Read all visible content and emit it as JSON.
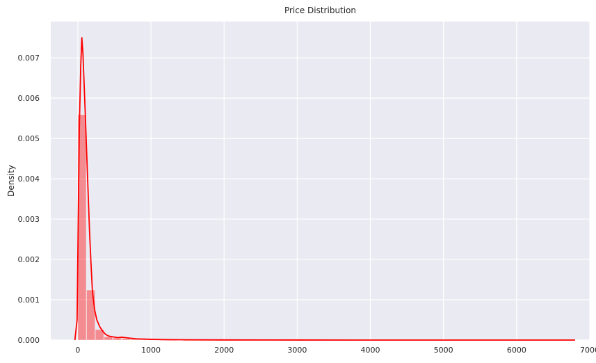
{
  "chart_data": {
    "type": "bar",
    "title": "Price Distribution",
    "xlabel": "",
    "ylabel": "Density",
    "xlim": [
      -370,
      7000
    ],
    "ylim": [
      0,
      0.0079
    ],
    "xticks": [
      0,
      1000,
      2000,
      3000,
      4000,
      5000,
      6000,
      7000
    ],
    "xtick_labels": [
      "0",
      "1000",
      "2000",
      "3000",
      "4000",
      "5000",
      "6000",
      "7000"
    ],
    "yticks": [
      0,
      0.001,
      0.002,
      0.003,
      0.004,
      0.005,
      0.006,
      0.007
    ],
    "ytick_labels": [
      "0.000",
      "0.001",
      "0.002",
      "0.003",
      "0.004",
      "0.005",
      "0.006",
      "0.007"
    ],
    "grid": true,
    "legend": "none",
    "histogram": {
      "bin_width": 120,
      "bins_start": [
        0,
        120,
        240,
        360,
        480,
        600,
        720,
        840,
        960,
        1080,
        1200,
        1320
      ],
      "densities": [
        0.00559,
        0.00124,
        0.00026,
        8e-05,
        5e-05,
        3.5e-05,
        2.5e-05,
        1.8e-05,
        1.3e-05,
        1e-05,
        8e-06,
        6e-06
      ],
      "tail_range": [
        1440,
        6770
      ],
      "tail_density": 3e-06,
      "color": "#ff0000"
    },
    "kde": {
      "x": [
        -40,
        -10,
        20,
        40,
        55,
        70,
        85,
        100,
        120,
        140,
        160,
        180,
        200,
        230,
        260,
        300,
        340,
        380,
        420,
        480,
        540,
        600,
        700,
        800,
        1000,
        1200,
        1500,
        2000,
        3000,
        4000,
        5000,
        6000,
        6800
      ],
      "y": [
        0,
        0.0005,
        0.0052,
        0.0068,
        0.0075,
        0.0071,
        0.0064,
        0.0057,
        0.0047,
        0.0037,
        0.0027,
        0.0019,
        0.0012,
        0.00075,
        0.0005,
        0.00033,
        0.00022,
        0.00014,
        0.0001,
        8e-05,
        6e-05,
        7e-05,
        5e-05,
        3e-05,
        1.8e-05,
        1e-05,
        6e-06,
        3e-06,
        1e-06,
        5e-07,
        5e-07,
        3e-07,
        0
      ],
      "color": "#ff0000"
    },
    "style": {
      "background": "#eaeaf2",
      "grid_color": "#ffffff"
    }
  }
}
